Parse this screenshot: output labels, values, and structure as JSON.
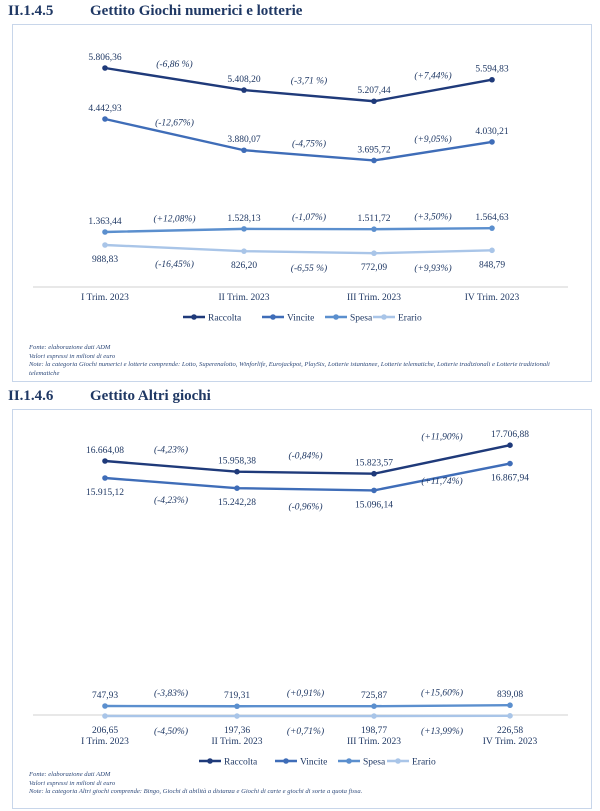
{
  "chart_data": [
    {
      "type": "line",
      "number": "II.1.4.5",
      "title": "Gettito Giochi numerici e lotterie",
      "categories": [
        "I Trim. 2023",
        "II Trim. 2023",
        "III Trim. 2023",
        "IV Trim. 2023"
      ],
      "series": [
        {
          "name": "Raccolta",
          "color": "#1f3a7a",
          "values": [
            5806.36,
            5408.2,
            5207.44,
            5594.83
          ],
          "labels": [
            "5.806,36",
            "5.408,20",
            "5.207,44",
            "5.594,83"
          ],
          "changes": [
            "(-6,86 %)",
            "(-3,71 %)",
            "(+7,44%)"
          ]
        },
        {
          "name": "Vincite",
          "color": "#3f6db8",
          "values": [
            4442.93,
            3880.07,
            3695.72,
            4030.21
          ],
          "labels": [
            "4.442,93",
            "3.880,07",
            "3.695,72",
            "4.030,21"
          ],
          "changes": [
            "(-12,67%)",
            "(-4,75%)",
            "(+9,05%)"
          ]
        },
        {
          "name": "Spesa",
          "color": "#5b8fce",
          "values": [
            1363.44,
            1528.13,
            1511.72,
            1564.63
          ],
          "labels": [
            "1.363,44",
            "1.528,13",
            "1.511,72",
            "1.564,63"
          ],
          "changes": [
            "(+12,08%)",
            "(-1,07%)",
            "(+3,50%)"
          ]
        },
        {
          "name": "Erario",
          "color": "#a9c5e8",
          "values": [
            988.83,
            826.2,
            772.09,
            848.79
          ],
          "labels": [
            "988,83",
            "826,20",
            "772,09",
            "848,79"
          ],
          "changes": [
            "(-16,45%)",
            "(-6,55 %)",
            "(+9,93%)"
          ]
        }
      ],
      "legend": "bottom",
      "notes": [
        "Fonte: elaborazione dati ADM",
        "Valori espressi in milioni di euro",
        "Note: la categoria Giochi numerici e lotterie comprende: Lotto, Superenalotto, Winforlife, Eurojackpot, PlaySix, Lotterie istantanee, Lotterie telematiche, Lotterie tradizionali e Lotterie tradizionali telematiche"
      ]
    },
    {
      "type": "line",
      "number": "II.1.4.6",
      "title": "Gettito Altri giochi",
      "categories": [
        "I Trim. 2023",
        "II Trim. 2023",
        "III Trim. 2023",
        "IV Trim. 2023"
      ],
      "series": [
        {
          "name": "Raccolta",
          "color": "#1f3a7a",
          "values": [
            16664.08,
            15958.38,
            15823.57,
            17706.88
          ],
          "labels": [
            "16.664,08",
            "15.958,38",
            "15.823,57",
            "17.706,88"
          ],
          "changes": [
            "(-4,23%)",
            "(-0,84%)",
            "(+11,90%)"
          ]
        },
        {
          "name": "Vincite",
          "color": "#3f6db8",
          "values": [
            15915.12,
            15242.28,
            15096.14,
            16867.94
          ],
          "labels": [
            "15.915,12",
            "15.242,28",
            "15.096,14",
            "16.867,94"
          ],
          "changes": [
            "(-4,23%)",
            "(-0,96%)",
            "(+11,74%)"
          ]
        },
        {
          "name": "Spesa",
          "color": "#5b8fce",
          "values": [
            747.93,
            719.31,
            725.87,
            839.08
          ],
          "labels": [
            "747,93",
            "719,31",
            "725,87",
            "839,08"
          ],
          "changes": [
            "(-3,83%)",
            "(+0,91%)",
            "(+15,60%)"
          ]
        },
        {
          "name": "Erario",
          "color": "#a9c5e8",
          "values": [
            206.65,
            197.36,
            198.77,
            226.58
          ],
          "labels": [
            "206,65",
            "197,36",
            "198,77",
            "226,58"
          ],
          "changes": [
            "(-4,50%)",
            "(+0,71%)",
            "(+13,99%)"
          ]
        }
      ],
      "legend": "bottom",
      "notes": [
        "Fonte: elaborazione dati ADM",
        "Valori espressi in milioni di euro",
        "Note: la categoria Altri giochi comprende: Bingo, Giochi di abilità a distanza e Giochi di carte e giochi di sorte a quota fissa."
      ]
    }
  ]
}
